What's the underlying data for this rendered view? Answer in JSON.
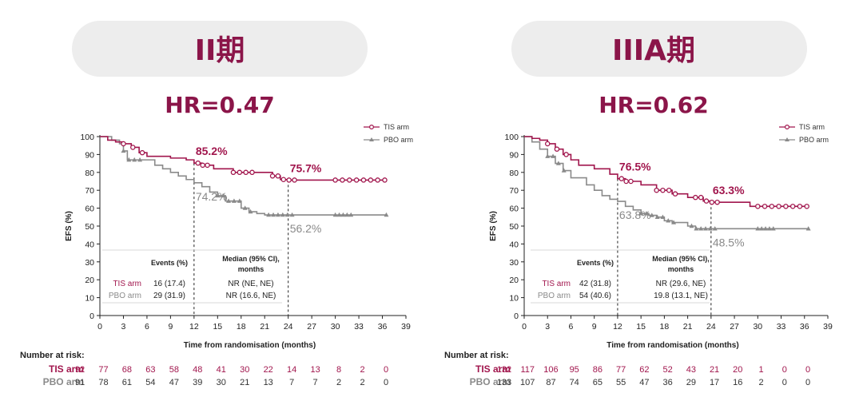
{
  "chart_data": [
    {
      "type": "line",
      "panel_label": "II期",
      "hr_label": "HR=0.47",
      "ylabel": "EFS (%)",
      "xlabel": "Time from randomisation (months)",
      "xlim": [
        0,
        39
      ],
      "ylim": [
        0,
        100
      ],
      "x_ticks": [
        0,
        3,
        6,
        9,
        12,
        15,
        18,
        21,
        24,
        27,
        30,
        33,
        36,
        39
      ],
      "y_ticks": [
        0,
        10,
        20,
        30,
        40,
        50,
        60,
        70,
        80,
        90,
        100
      ],
      "legend_position": "top-right",
      "colors": {
        "tis": "#a1164d",
        "pbo": "#8a8a8a"
      },
      "series": [
        {
          "name": "TIS arm",
          "x": [
            0,
            1,
            2,
            3,
            4,
            5,
            6,
            9,
            11,
            12,
            13,
            14.5,
            17,
            20,
            22,
            23,
            24,
            27,
            31,
            33,
            36.5
          ],
          "y": [
            100,
            98,
            97,
            96,
            94,
            91,
            89,
            88,
            87,
            85.2,
            84,
            82,
            80,
            80,
            78,
            76,
            75.7,
            75.7,
            75.7,
            75.7,
            75.7
          ],
          "landmarks": [
            {
              "x": 12,
              "y": 85.2,
              "label": "85.2%"
            },
            {
              "x": 24,
              "y": 75.7,
              "label": "75.7%"
            }
          ]
        },
        {
          "name": "PBO arm",
          "x": [
            0,
            1.5,
            2.5,
            3,
            3.5,
            6,
            7,
            8,
            9,
            10,
            11,
            12,
            13,
            14,
            15,
            16,
            18,
            19,
            20,
            21,
            24,
            27,
            30,
            33,
            36.5
          ],
          "y": [
            100,
            98,
            96,
            92,
            87,
            87,
            84,
            82,
            80,
            78,
            76,
            74.2,
            72,
            69,
            67,
            64,
            60,
            58,
            57,
            56.2,
            56.2,
            56.2,
            56.2,
            56.2,
            56.2
          ],
          "landmarks": [
            {
              "x": 12,
              "y": 74.2,
              "label": "74.2%"
            },
            {
              "x": 24,
              "y": 56.2,
              "label": "56.2%"
            }
          ]
        }
      ],
      "table": {
        "headers": [
          "Events (%)",
          "Median (95% CI), months"
        ],
        "rows": [
          {
            "arm": "TIS arm",
            "events": "16 (17.4)",
            "median": "NR (NE, NE)"
          },
          {
            "arm": "PBO arm",
            "events": "29 (31.9)",
            "median": "NR (16.6, NE)"
          }
        ]
      },
      "risk": {
        "title": "Number at risk:",
        "tis_label": "TIS arm",
        "pbo_label": "PBO arm",
        "tis": [
          92,
          77,
          68,
          63,
          58,
          48,
          41,
          30,
          22,
          14,
          13,
          8,
          2,
          0
        ],
        "pbo": [
          91,
          78,
          61,
          54,
          47,
          39,
          30,
          21,
          13,
          7,
          7,
          2,
          2,
          0
        ]
      }
    },
    {
      "type": "line",
      "panel_label": "IIIA期",
      "hr_label": "HR=0.62",
      "ylabel": "EFS (%)",
      "xlabel": "Time from randomisation (months)",
      "xlim": [
        0,
        39
      ],
      "ylim": [
        0,
        100
      ],
      "x_ticks": [
        0,
        3,
        6,
        9,
        12,
        15,
        18,
        21,
        24,
        27,
        30,
        33,
        36,
        39
      ],
      "y_ticks": [
        0,
        10,
        20,
        30,
        40,
        50,
        60,
        70,
        80,
        90,
        100
      ],
      "legend_position": "top-right",
      "colors": {
        "tis": "#a1164d",
        "pbo": "#8a8a8a"
      },
      "series": [
        {
          "name": "TIS arm",
          "x": [
            0,
            1,
            2,
            3,
            4,
            5,
            6,
            7,
            9,
            11,
            12,
            13,
            15,
            17,
            19,
            21,
            23,
            24,
            27,
            29,
            30,
            31,
            36.5
          ],
          "y": [
            100,
            99,
            98,
            96,
            93,
            90,
            87,
            84,
            82,
            79,
            76.5,
            75,
            73,
            70,
            68,
            66,
            64,
            63.3,
            63.3,
            61,
            61,
            61,
            61
          ],
          "landmarks": [
            {
              "x": 12,
              "y": 76.5,
              "label": "76.5%"
            },
            {
              "x": 24,
              "y": 63.3,
              "label": "63.3%"
            }
          ]
        },
        {
          "name": "PBO arm",
          "x": [
            0,
            1,
            2,
            3,
            4,
            5,
            6,
            8,
            9,
            10,
            11,
            12,
            13,
            14,
            15,
            16,
            17,
            18,
            19,
            21,
            22,
            24,
            30,
            33,
            36.5
          ],
          "y": [
            100,
            97,
            93,
            89,
            85,
            81,
            77,
            73,
            70,
            67,
            65,
            63.8,
            61,
            59,
            57,
            56,
            55,
            53,
            52,
            50,
            48.5,
            48.5,
            48.5,
            48.5,
            48.5
          ],
          "landmarks": [
            {
              "x": 12,
              "y": 63.8,
              "label": "63.8%"
            },
            {
              "x": 24,
              "y": 48.5,
              "label": "48.5%"
            }
          ]
        }
      ],
      "table": {
        "headers": [
          "Events (%)",
          "Median (95% CI), months"
        ],
        "rows": [
          {
            "arm": "TIS arm",
            "events": "42 (31.8)",
            "median": "NR (29.6, NE)"
          },
          {
            "arm": "PBO arm",
            "events": "54 (40.6)",
            "median": "19.8 (13.1, NE)"
          }
        ]
      },
      "risk": {
        "title": "Number at risk:",
        "tis_label": "TIS arm",
        "pbo_label": "PBO arm",
        "tis": [
          132,
          117,
          106,
          95,
          86,
          77,
          62,
          52,
          43,
          21,
          20,
          1,
          0,
          0
        ],
        "pbo": [
          133,
          107,
          87,
          74,
          65,
          55,
          47,
          36,
          29,
          17,
          16,
          2,
          0,
          0
        ]
      }
    }
  ]
}
